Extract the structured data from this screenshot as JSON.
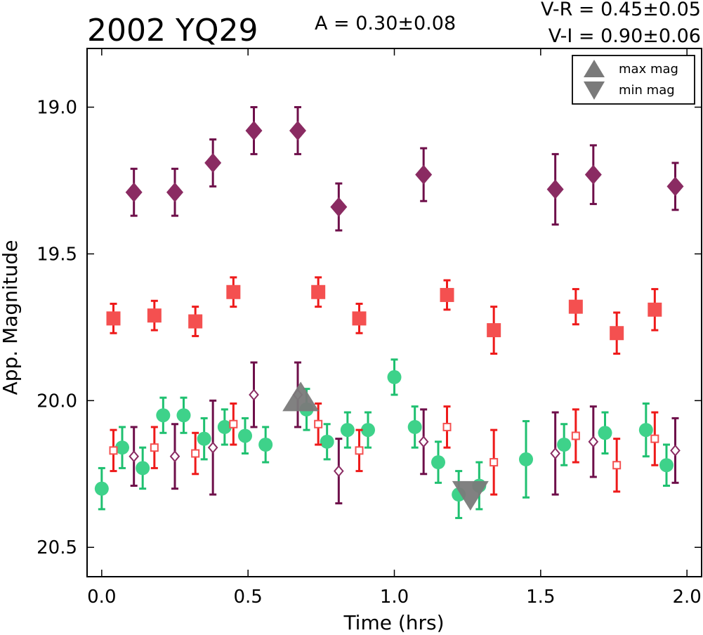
{
  "chart_data": {
    "type": "scatter",
    "title": "2002 YQ29",
    "annotations": {
      "amplitude": "A  = 0.30±0.08",
      "v_r": "V-R = 0.45±0.05",
      "v_i": "V-I  = 0.90±0.06"
    },
    "xlabel": "Time (hrs)",
    "ylabel": "App. Magnitude",
    "xlim": [
      -0.05,
      2.05
    ],
    "ylim": [
      20.6,
      18.8
    ],
    "y_inverted": true,
    "x_ticks": [
      "0.0",
      "0.5",
      "1.0",
      "1.5",
      "2.0"
    ],
    "y_ticks": [
      "19.0",
      "19.5",
      "20.0",
      "20.5"
    ],
    "grid": false,
    "legend": {
      "placement": "top-right",
      "entries": [
        {
          "label": "max mag",
          "marker": "triangle-up",
          "color": "#7a7a7a"
        },
        {
          "label": "min mag",
          "marker": "triangle-down",
          "color": "#7a7a7a"
        }
      ]
    },
    "series": [
      {
        "marker": "diamond-filled",
        "color": "#8a2b62",
        "bar_color": "#6e0f4a",
        "points": [
          {
            "x": 0.11,
            "y": 19.29,
            "err": 0.08
          },
          {
            "x": 0.25,
            "y": 19.29,
            "err": 0.08
          },
          {
            "x": 0.38,
            "y": 19.19,
            "err": 0.08
          },
          {
            "x": 0.52,
            "y": 19.08,
            "err": 0.08
          },
          {
            "x": 0.67,
            "y": 19.08,
            "err": 0.08
          },
          {
            "x": 0.81,
            "y": 19.34,
            "err": 0.08
          },
          {
            "x": 1.1,
            "y": 19.23,
            "err": 0.09
          },
          {
            "x": 1.55,
            "y": 19.28,
            "err": 0.12
          },
          {
            "x": 1.68,
            "y": 19.23,
            "err": 0.1
          },
          {
            "x": 1.96,
            "y": 19.27,
            "err": 0.08
          }
        ]
      },
      {
        "marker": "square-filled",
        "color": "#f45050",
        "bar_color": "#ee1a1a",
        "points": [
          {
            "x": 0.04,
            "y": 19.72,
            "err": 0.05
          },
          {
            "x": 0.18,
            "y": 19.71,
            "err": 0.05
          },
          {
            "x": 0.32,
            "y": 19.73,
            "err": 0.05
          },
          {
            "x": 0.45,
            "y": 19.63,
            "err": 0.05
          },
          {
            "x": 0.74,
            "y": 19.63,
            "err": 0.05
          },
          {
            "x": 0.88,
            "y": 19.72,
            "err": 0.05
          },
          {
            "x": 1.18,
            "y": 19.64,
            "err": 0.05
          },
          {
            "x": 1.34,
            "y": 19.76,
            "err": 0.08
          },
          {
            "x": 1.62,
            "y": 19.68,
            "err": 0.06
          },
          {
            "x": 1.76,
            "y": 19.77,
            "err": 0.07
          },
          {
            "x": 1.89,
            "y": 19.69,
            "err": 0.07
          }
        ]
      },
      {
        "marker": "circle-filled",
        "color": "#3ed28a",
        "bar_color": "#1fc070",
        "points": [
          {
            "x": 0.0,
            "y": 20.3,
            "err": 0.07
          },
          {
            "x": 0.07,
            "y": 20.16,
            "err": 0.07
          },
          {
            "x": 0.14,
            "y": 20.23,
            "err": 0.07
          },
          {
            "x": 0.21,
            "y": 20.05,
            "err": 0.06
          },
          {
            "x": 0.28,
            "y": 20.05,
            "err": 0.06
          },
          {
            "x": 0.35,
            "y": 20.13,
            "err": 0.07
          },
          {
            "x": 0.42,
            "y": 20.09,
            "err": 0.06
          },
          {
            "x": 0.49,
            "y": 20.12,
            "err": 0.06
          },
          {
            "x": 0.56,
            "y": 20.15,
            "err": 0.06
          },
          {
            "x": 0.7,
            "y": 20.03,
            "err": 0.07
          },
          {
            "x": 0.77,
            "y": 20.14,
            "err": 0.06
          },
          {
            "x": 0.84,
            "y": 20.1,
            "err": 0.06
          },
          {
            "x": 0.91,
            "y": 20.1,
            "err": 0.06
          },
          {
            "x": 1.0,
            "y": 19.92,
            "err": 0.06
          },
          {
            "x": 1.07,
            "y": 20.09,
            "err": 0.07
          },
          {
            "x": 1.15,
            "y": 20.21,
            "err": 0.07
          },
          {
            "x": 1.22,
            "y": 20.32,
            "err": 0.08
          },
          {
            "x": 1.29,
            "y": 20.29,
            "err": 0.08
          },
          {
            "x": 1.45,
            "y": 20.2,
            "err": 0.13
          },
          {
            "x": 1.58,
            "y": 20.15,
            "err": 0.07
          },
          {
            "x": 1.72,
            "y": 20.11,
            "err": 0.07
          },
          {
            "x": 1.86,
            "y": 20.1,
            "err": 0.09
          },
          {
            "x": 1.93,
            "y": 20.22,
            "err": 0.07
          }
        ]
      },
      {
        "marker": "diamond-open",
        "color": "#8a2b62",
        "bar_color": "#6e0f4a",
        "points": [
          {
            "x": 0.11,
            "y": 20.19,
            "err": 0.1
          },
          {
            "x": 0.25,
            "y": 20.19,
            "err": 0.11
          },
          {
            "x": 0.38,
            "y": 20.16,
            "err": 0.16
          },
          {
            "x": 0.52,
            "y": 19.98,
            "err": 0.11
          },
          {
            "x": 0.67,
            "y": 19.98,
            "err": 0.11
          },
          {
            "x": 0.81,
            "y": 20.24,
            "err": 0.11
          },
          {
            "x": 1.1,
            "y": 20.14,
            "err": 0.11
          },
          {
            "x": 1.55,
            "y": 20.18,
            "err": 0.14
          },
          {
            "x": 1.68,
            "y": 20.14,
            "err": 0.12
          },
          {
            "x": 1.96,
            "y": 20.17,
            "err": 0.11
          }
        ]
      },
      {
        "marker": "square-open",
        "color": "#f45050",
        "bar_color": "#ee1a1a",
        "points": [
          {
            "x": 0.04,
            "y": 20.17,
            "err": 0.07
          },
          {
            "x": 0.18,
            "y": 20.16,
            "err": 0.07
          },
          {
            "x": 0.32,
            "y": 20.18,
            "err": 0.07
          },
          {
            "x": 0.45,
            "y": 20.08,
            "err": 0.07
          },
          {
            "x": 0.74,
            "y": 20.08,
            "err": 0.07
          },
          {
            "x": 0.88,
            "y": 20.17,
            "err": 0.07
          },
          {
            "x": 1.18,
            "y": 20.09,
            "err": 0.07
          },
          {
            "x": 1.34,
            "y": 20.21,
            "err": 0.11
          },
          {
            "x": 1.62,
            "y": 20.12,
            "err": 0.09
          },
          {
            "x": 1.76,
            "y": 20.22,
            "err": 0.09
          },
          {
            "x": 1.89,
            "y": 20.13,
            "err": 0.09
          }
        ]
      }
    ],
    "markers": [
      {
        "label": "max mag",
        "shape": "triangle-up",
        "x": 0.68,
        "y": 20.0,
        "color": "#7a7a7a"
      },
      {
        "label": "min mag",
        "shape": "triangle-down",
        "x": 1.26,
        "y": 20.31,
        "color": "#7a7a7a"
      }
    ]
  }
}
